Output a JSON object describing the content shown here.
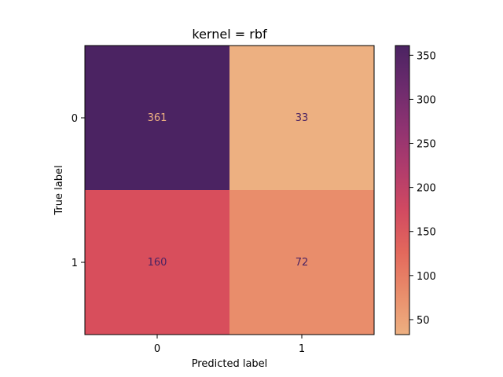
{
  "chart_data": {
    "type": "heatmap",
    "title": "kernel = rbf",
    "xlabel": "Predicted label",
    "ylabel": "True label",
    "x_categories": [
      "0",
      "1"
    ],
    "y_categories": [
      "0",
      "1"
    ],
    "values": [
      [
        361,
        33
      ],
      [
        160,
        72
      ]
    ],
    "colormap": "flare-reversed",
    "colorbar": {
      "min": 33,
      "max": 361,
      "ticks": [
        50,
        100,
        150,
        200,
        250,
        300,
        350
      ],
      "stops": [
        "#edb081",
        "#e98d6b",
        "#e3685c",
        "#d14a61",
        "#b13c6c",
        "#8f3371",
        "#6c2b6d",
        "#4b2362"
      ]
    },
    "cell_colors": [
      [
        "#4b2362",
        "#edb081"
      ],
      [
        "#d84e5c",
        "#e98d6b"
      ]
    ],
    "label_colors": [
      [
        "#edb081",
        "#4b2362"
      ],
      [
        "#4b2362",
        "#4b2362"
      ]
    ]
  }
}
